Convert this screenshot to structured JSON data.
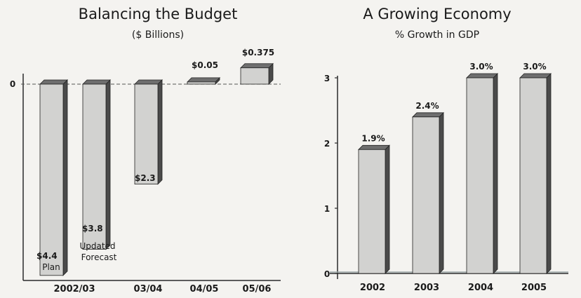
{
  "chart_data": [
    {
      "type": "bar",
      "title": "Balancing the Budget",
      "subtitle": "($ Billions)",
      "categories": [
        "2002/03",
        "2002/03",
        "03/04",
        "04/05",
        "05/06"
      ],
      "category_labels": [
        "2002/03",
        "03/04",
        "04/05",
        "05/06"
      ],
      "values": [
        -4.4,
        -3.8,
        -2.3,
        0.05,
        0.375
      ],
      "value_labels": [
        "$4.4",
        "$3.8",
        "$2.3",
        "$0.05",
        "$0.375"
      ],
      "bar_notes": [
        "Plan",
        "Updated Forecast",
        "",
        "",
        ""
      ],
      "y_ticks": [
        "0"
      ],
      "ylim": [
        -4.6,
        0.5
      ],
      "grid": false
    },
    {
      "type": "bar",
      "title": "A Growing Economy",
      "subtitle": "% Growth in GDP",
      "categories": [
        "2002",
        "2003",
        "2004",
        "2005"
      ],
      "values": [
        1.9,
        2.4,
        3.0,
        3.0
      ],
      "value_labels": [
        "1.9%",
        "2.4%",
        "3.0%",
        "3.0%"
      ],
      "y_ticks": [
        "0",
        "1",
        "2",
        "3"
      ],
      "ylim": [
        0,
        3.2
      ],
      "grid": false
    }
  ],
  "colors": {
    "bar_front": "#d2d2d0",
    "bar_side": "#4a4a4a",
    "bar_top": "#6e6e6e",
    "axis": "#2a2a2a",
    "zero_line": "#555555"
  }
}
